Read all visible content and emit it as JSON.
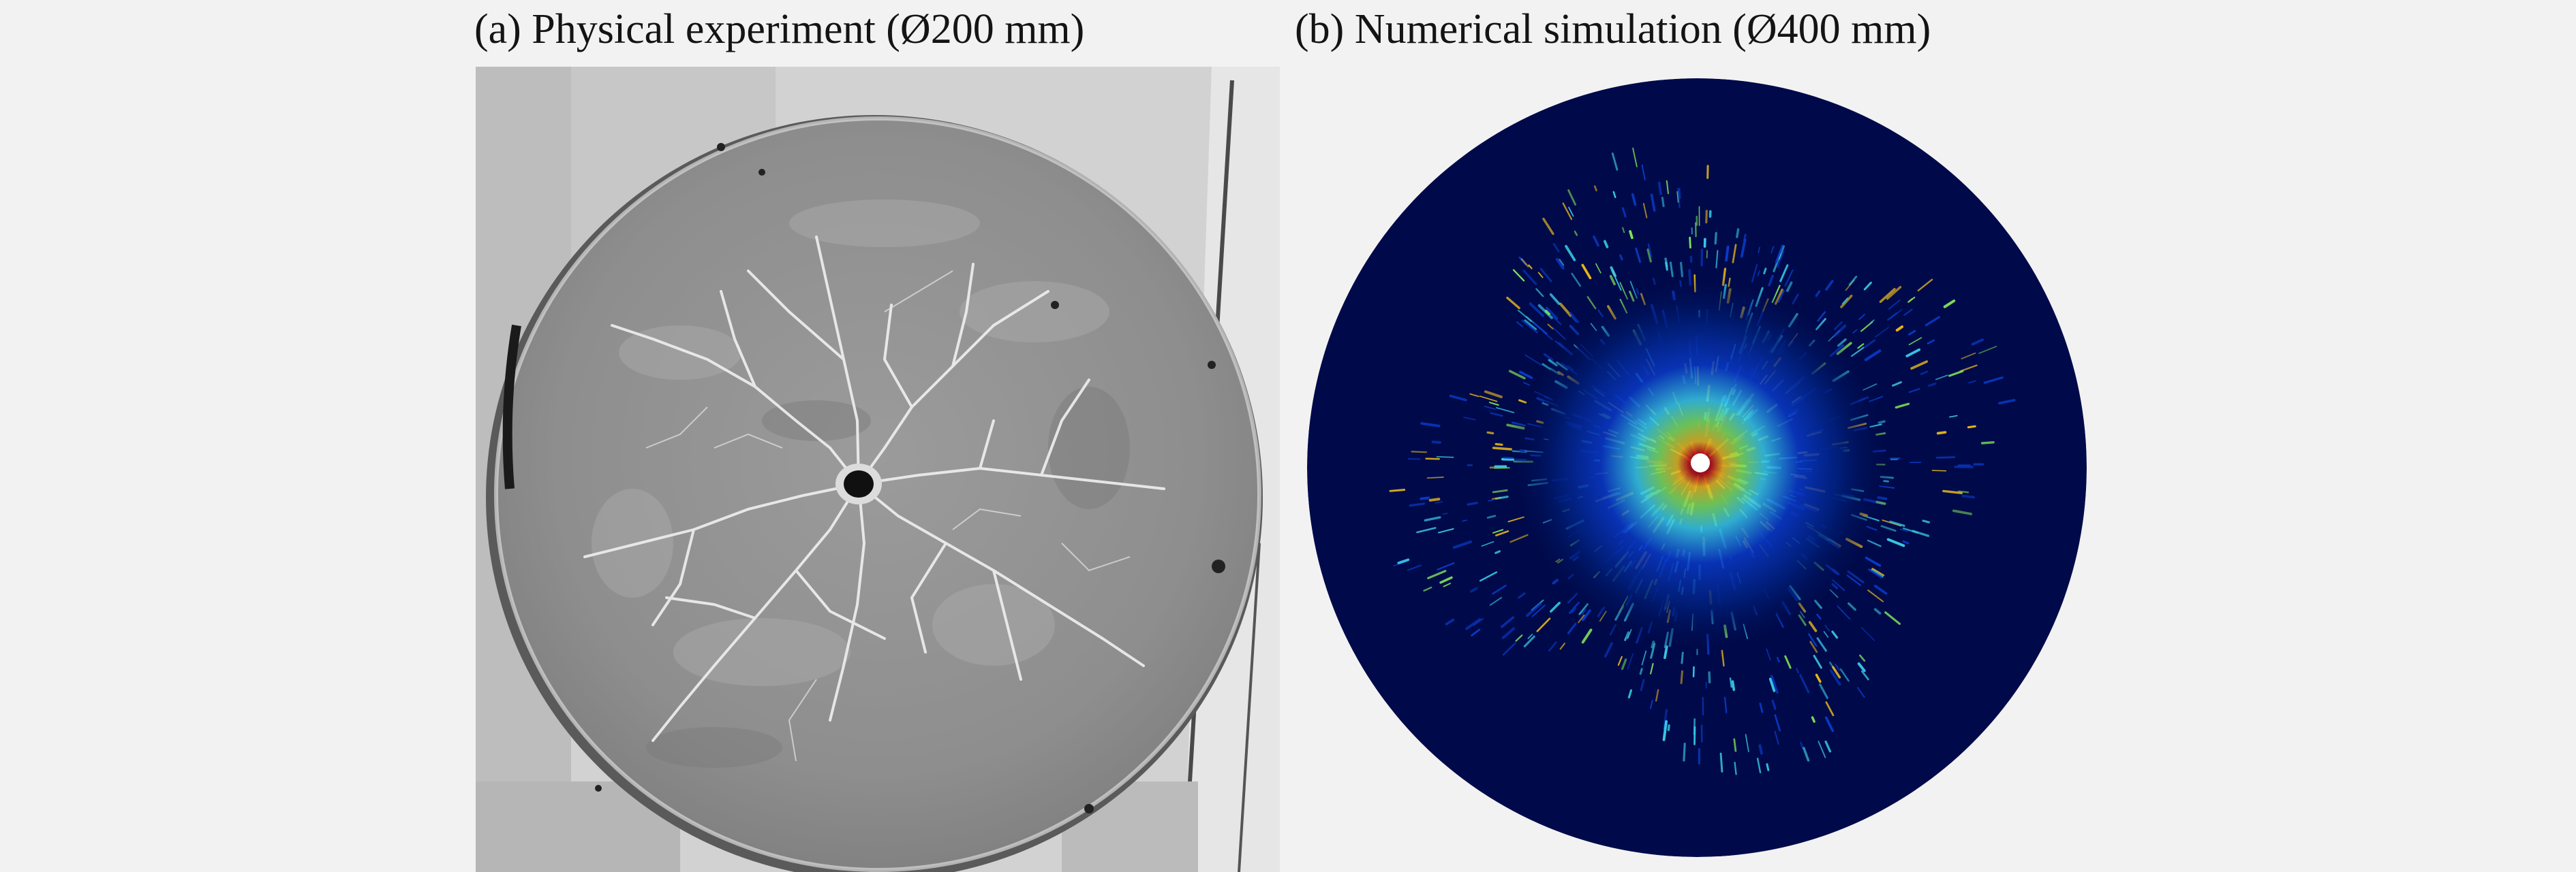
{
  "figure": {
    "panel_a": {
      "caption": "(a) Physical experiment (Ø200 mm)",
      "image": "photo-of-cracked-concrete-disc"
    },
    "panel_b": {
      "caption": "(b) Numerical simulation (Ø400 mm)",
      "image": "damage-contour-of-disc"
    },
    "colors": {
      "background": "#f2f2f2",
      "sim_background": "#000a4a",
      "sim_low": "#0a3ac8",
      "sim_mid": "#39c9e6",
      "sim_green": "#7ee05a",
      "sim_high": "#e6b81e",
      "sim_peak": "#c01818"
    }
  }
}
